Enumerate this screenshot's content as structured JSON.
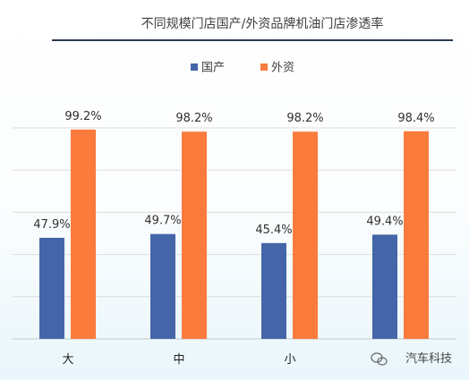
{
  "chart_data": {
    "type": "bar",
    "title": "不同规模门店国产/外资品牌机油门店渗透率",
    "categories": [
      "大",
      "中",
      "小",
      ""
    ],
    "series": [
      {
        "name": "国产",
        "color": "#4466a8",
        "values": [
          47.9,
          49.7,
          45.4,
          49.4
        ],
        "labels": [
          "47.9%",
          "49.7%",
          "45.4%",
          "49.4%"
        ]
      },
      {
        "name": "外资",
        "color": "#fa7b3c",
        "values": [
          99.2,
          98.2,
          98.2,
          98.4
        ],
        "labels": [
          "99.2%",
          "98.2%",
          "98.2%",
          "98.4%"
        ]
      }
    ],
    "ylim": [
      0,
      100
    ],
    "grid": true,
    "legend_position": "top-center",
    "xlabel": "",
    "ylabel": ""
  },
  "watermark": {
    "text": "汽车科技",
    "icon": "wechat-icon"
  }
}
